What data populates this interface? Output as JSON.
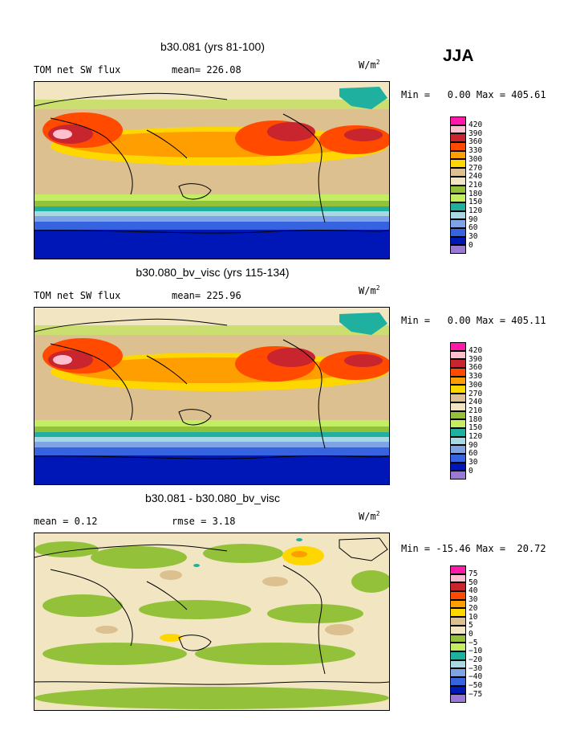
{
  "season": "JJA",
  "units_base": "W/m",
  "units_exp": "2",
  "chart_data": [
    {
      "type": "heatmap",
      "title": "b30.081 (yrs 81-100)",
      "subtitle_left": "TOM net SW flux",
      "subtitle_mid": "mean= 226.08",
      "minmax": "Min =   0.00 Max = 405.61",
      "min": 0.0,
      "max": 405.61,
      "mean": 226.08,
      "legend": {
        "colors": [
          "#ff1aaa",
          "#ffbfcf",
          "#c8252e",
          "#ff4a00",
          "#ff9e00",
          "#ffd700",
          "#ddc08f",
          "#f2e6c2",
          "#94c13a",
          "#c3ed62",
          "#1fb0a0",
          "#a8d8e3",
          "#7fa4e6",
          "#3663e0",
          "#0017b8",
          "#9a79d6"
        ],
        "labels": [
          "420",
          "390",
          "360",
          "330",
          "300",
          "270",
          "240",
          "210",
          "180",
          "150",
          "120",
          "90",
          "60",
          "30",
          "0"
        ]
      }
    },
    {
      "type": "heatmap",
      "title": "b30.080_bv_visc (yrs 115-134)",
      "subtitle_left": "TOM net SW flux",
      "subtitle_mid": "mean= 225.96",
      "minmax": "Min =   0.00 Max = 405.11",
      "min": 0.0,
      "max": 405.11,
      "mean": 225.96,
      "legend": {
        "colors": [
          "#ff1aaa",
          "#ffbfcf",
          "#c8252e",
          "#ff4a00",
          "#ff9e00",
          "#ffd700",
          "#ddc08f",
          "#f2e6c2",
          "#94c13a",
          "#c3ed62",
          "#1fb0a0",
          "#a8d8e3",
          "#7fa4e6",
          "#3663e0",
          "#0017b8",
          "#9a79d6"
        ],
        "labels": [
          "420",
          "390",
          "360",
          "330",
          "300",
          "270",
          "240",
          "210",
          "180",
          "150",
          "120",
          "90",
          "60",
          "30",
          "0"
        ]
      }
    },
    {
      "type": "heatmap",
      "title": "b30.081 - b30.080_bv_visc",
      "subtitle_left": "mean =    0.12",
      "subtitle_mid": "rmse =    3.18",
      "minmax": "Min = -15.46 Max =  20.72",
      "min": -15.46,
      "max": 20.72,
      "mean": 0.12,
      "rmse": 3.18,
      "legend": {
        "colors": [
          "#ff1aaa",
          "#ffbfcf",
          "#c8252e",
          "#ff4a00",
          "#ff9e00",
          "#ffd700",
          "#ddc08f",
          "#f2e6c2",
          "#94c13a",
          "#c3ed62",
          "#1fb0a0",
          "#a8d8e3",
          "#7fa4e6",
          "#3663e0",
          "#0017b8",
          "#9a79d6"
        ],
        "labels": [
          "75",
          "50",
          "40",
          "30",
          "20",
          "10",
          "5",
          "0",
          "−5",
          "−10",
          "−20",
          "−30",
          "−40",
          "−50",
          "−75"
        ]
      }
    }
  ]
}
